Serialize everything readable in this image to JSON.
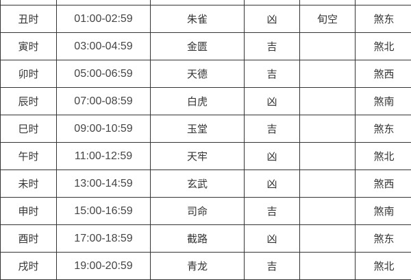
{
  "rows": [
    {
      "shichen": "",
      "time": "",
      "god": "",
      "luck": "",
      "note": "",
      "sha": ""
    },
    {
      "shichen": "丑时",
      "time": "01:00-02:59",
      "god": "朱雀",
      "luck": "凶",
      "note": "旬空",
      "sha": "煞东"
    },
    {
      "shichen": "寅时",
      "time": "03:00-04:59",
      "god": "金匮",
      "luck": "吉",
      "note": "",
      "sha": "煞北"
    },
    {
      "shichen": "卯时",
      "time": "05:00-06:59",
      "god": "天德",
      "luck": "吉",
      "note": "",
      "sha": "煞西"
    },
    {
      "shichen": "辰时",
      "time": "07:00-08:59",
      "god": "白虎",
      "luck": "凶",
      "note": "",
      "sha": "煞南"
    },
    {
      "shichen": "巳时",
      "time": "09:00-10:59",
      "god": "玉堂",
      "luck": "吉",
      "note": "",
      "sha": "煞东"
    },
    {
      "shichen": "午时",
      "time": "11:00-12:59",
      "god": "天牢",
      "luck": "凶",
      "note": "",
      "sha": "煞北"
    },
    {
      "shichen": "未时",
      "time": "13:00-14:59",
      "god": "玄武",
      "luck": "凶",
      "note": "",
      "sha": "煞西"
    },
    {
      "shichen": "申时",
      "time": "15:00-16:59",
      "god": "司命",
      "luck": "吉",
      "note": "",
      "sha": "煞南"
    },
    {
      "shichen": "酉时",
      "time": "17:00-18:59",
      "god": "截路",
      "luck": "凶",
      "note": "",
      "sha": "煞东"
    },
    {
      "shichen": "戌时",
      "time": "19:00-20:59",
      "god": "青龙",
      "luck": "吉",
      "note": "",
      "sha": "煞北"
    }
  ]
}
